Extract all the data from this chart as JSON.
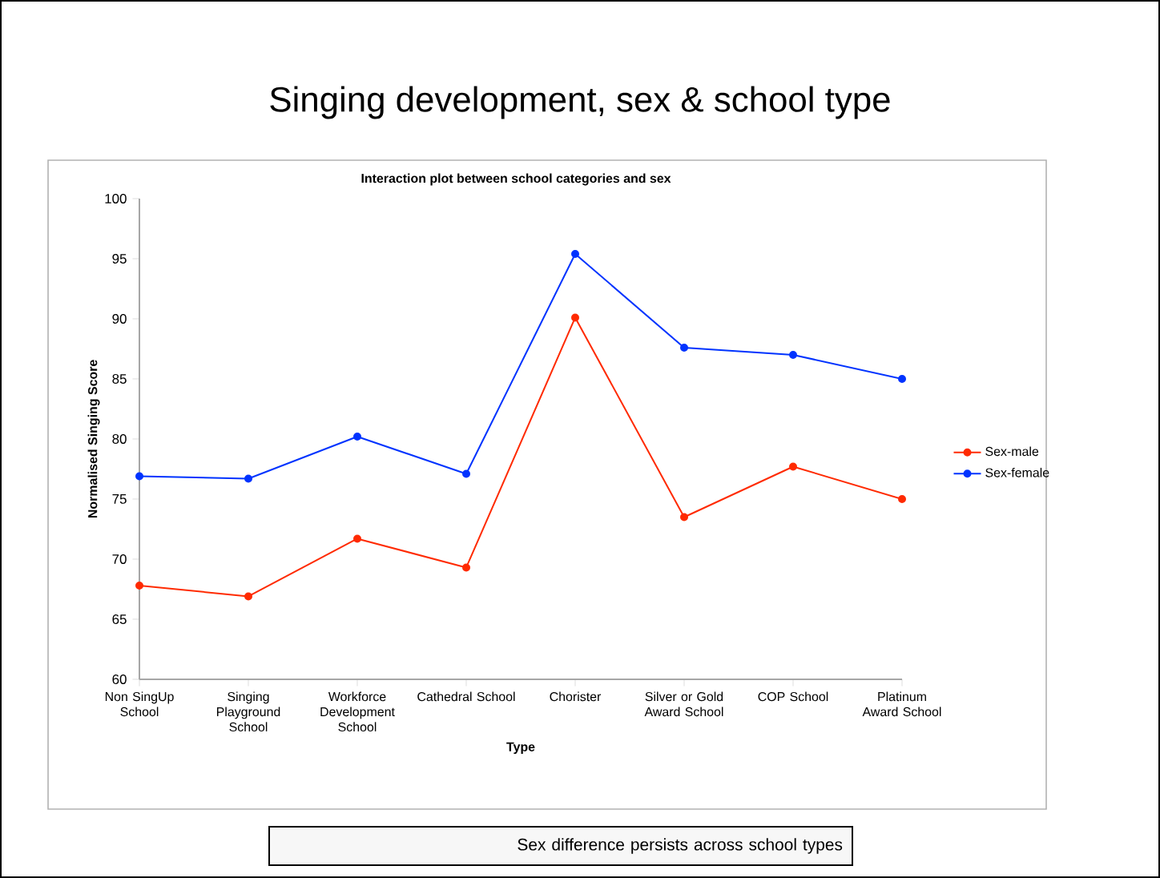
{
  "chart_data": {
    "type": "line",
    "title": "Singing development, sex & school type",
    "subtitle": "Interaction plot between school categories and sex",
    "xlabel": "Type",
    "ylabel": "Normalised Singing Score",
    "categories": [
      "Non SingUp School",
      "Singing Playground School",
      "Workforce Development School",
      "Cathedral School",
      "Chorister",
      "Silver or Gold Award School",
      "COP School",
      "Platinum Award School"
    ],
    "series": [
      {
        "name": "Sex-male",
        "color": "#ff2a00",
        "values": [
          67.8,
          66.9,
          71.7,
          69.3,
          90.1,
          73.5,
          77.7,
          75.0
        ]
      },
      {
        "name": "Sex-female",
        "color": "#0033ff",
        "values": [
          76.9,
          76.7,
          80.2,
          77.1,
          95.4,
          87.6,
          87.0,
          85.0
        ]
      }
    ],
    "ylim": [
      60,
      100
    ],
    "yticks": [
      60,
      65,
      70,
      75,
      80,
      85,
      90,
      95,
      100
    ],
    "marker": "circle",
    "line_style": "solid",
    "grid": false,
    "legend": "right",
    "annotations": [
      "Sex difference persists across school types"
    ]
  }
}
